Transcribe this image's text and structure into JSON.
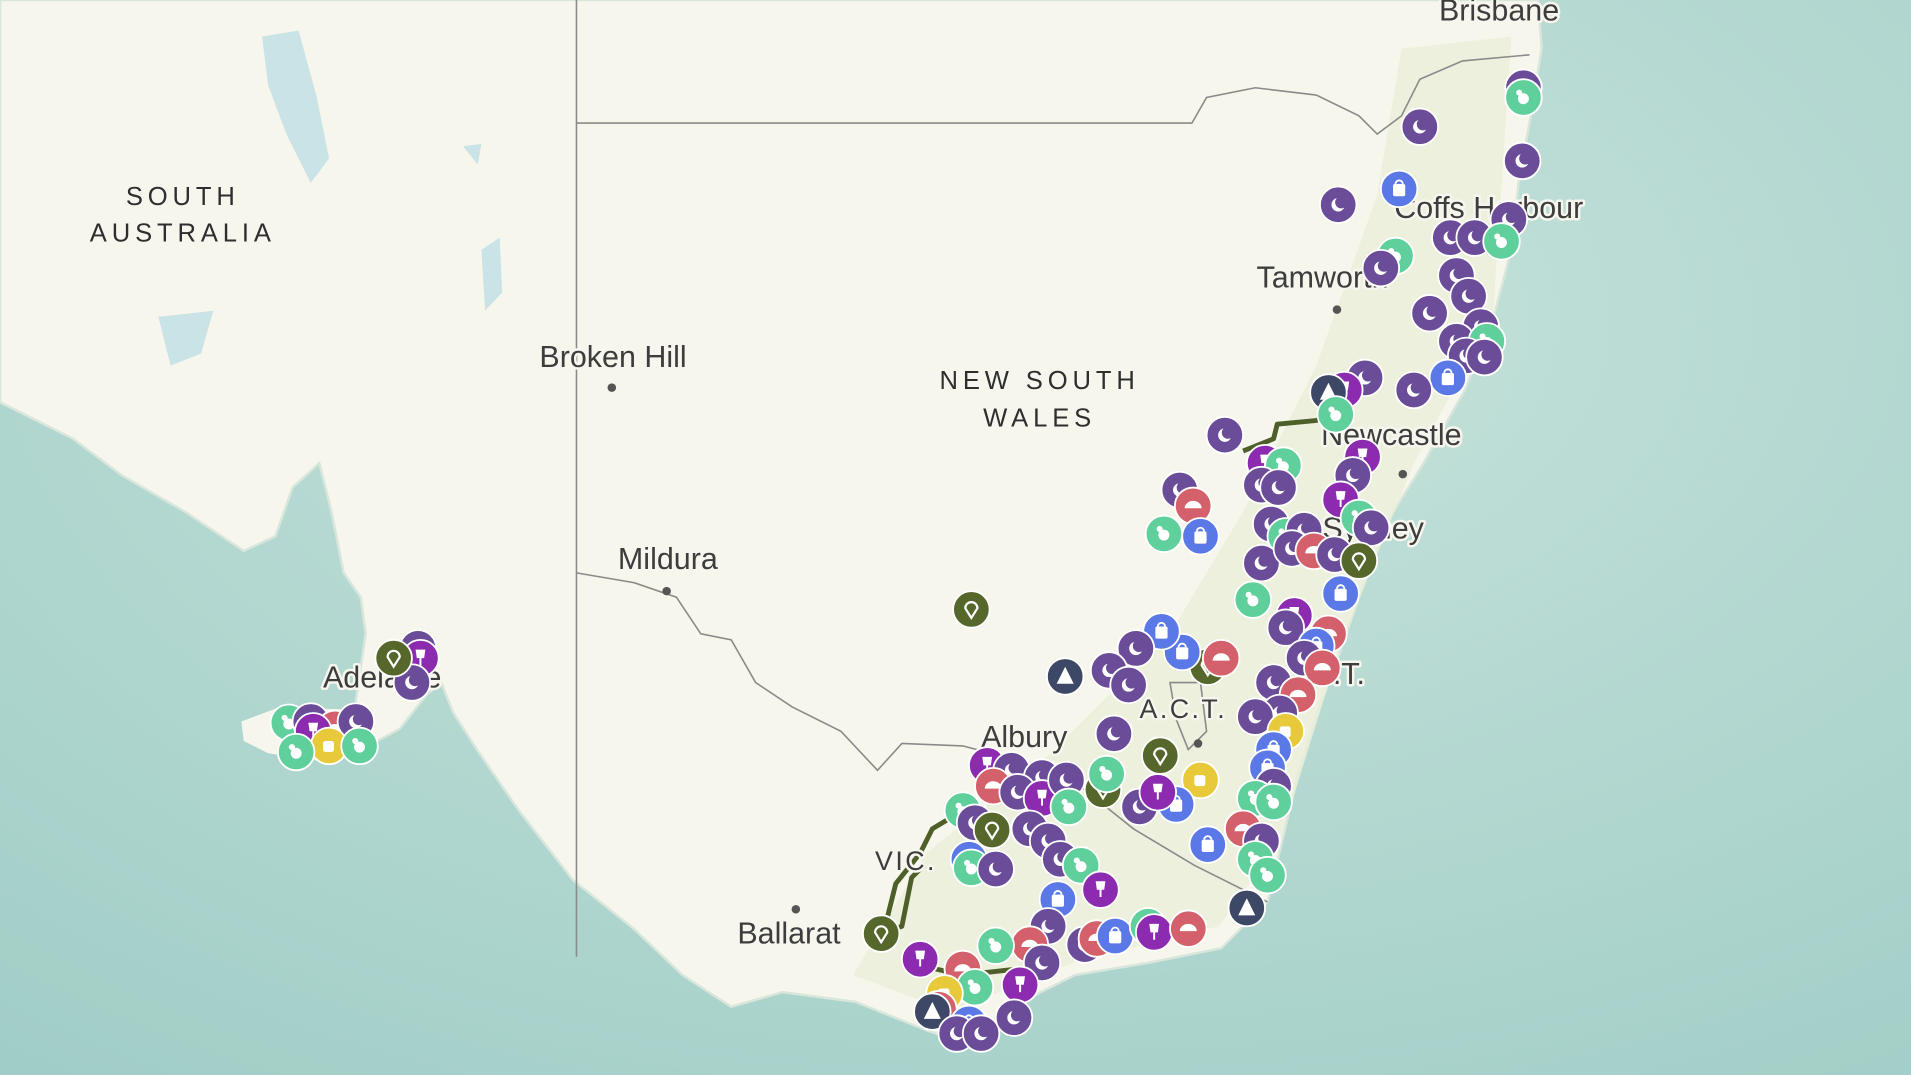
{
  "map": {
    "regions": [
      {
        "lines": [
          "SOUTH",
          "AUSTRALIA"
        ]
      },
      {
        "lines": [
          "NEW SOUTH",
          "WALES"
        ]
      }
    ],
    "places": [
      "Brisbane",
      "Coffs Harbour",
      "Tamworth",
      "Newcastle",
      "Sydney",
      "J.B.T.",
      "A.C.T.",
      "Albury",
      "Broken Hill",
      "Mildura",
      "Adelaide",
      "VIC.",
      "Ballarat"
    ]
  }
}
